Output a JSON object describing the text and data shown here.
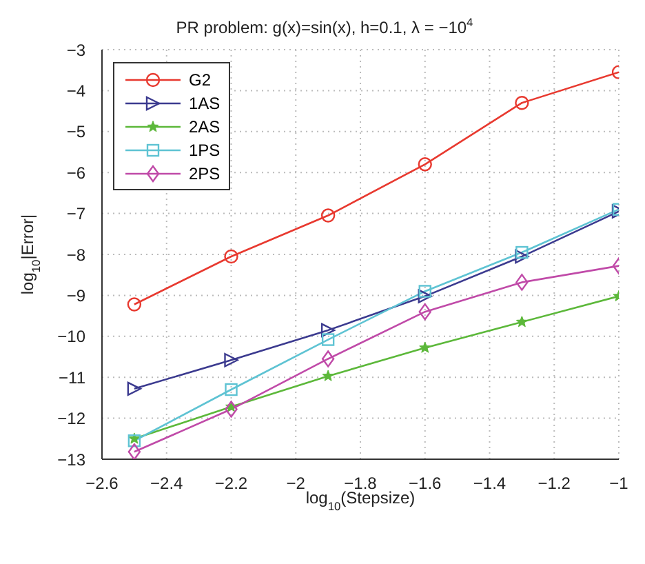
{
  "chart_data": {
    "type": "line",
    "title": "PR problem: g(x)=sin(x), h=0.1, λ = −10$^{4}$",
    "xlabel": "log$_{10}$(Stepsize)",
    "ylabel": "log$_{10}$|Error|",
    "x": [
      -2.5,
      -2.2,
      -1.9,
      -1.6,
      -1.3,
      -1.0
    ],
    "series": [
      {
        "name": "G2",
        "color": "#e8392f",
        "marker": "circle",
        "values": [
          -9.22,
          -8.05,
          -7.05,
          -5.8,
          -4.3,
          -3.55
        ]
      },
      {
        "name": "1AS",
        "color": "#3b3a8f",
        "marker": "triangle",
        "values": [
          -11.28,
          -10.58,
          -9.85,
          -9.02,
          -8.05,
          -6.95
        ]
      },
      {
        "name": "2AS",
        "color": "#5cb83a",
        "marker": "star",
        "values": [
          -12.5,
          -11.72,
          -10.97,
          -10.28,
          -9.65,
          -9.02
        ]
      },
      {
        "name": "1PS",
        "color": "#5ec3d3",
        "marker": "square",
        "values": [
          -12.55,
          -11.3,
          -10.08,
          -8.9,
          -7.95,
          -6.9
        ]
      },
      {
        "name": "2PS",
        "color": "#c04aa8",
        "marker": "diamond",
        "values": [
          -12.82,
          -11.78,
          -10.55,
          -9.4,
          -8.68,
          -8.28
        ]
      }
    ],
    "xlim": [
      -2.6,
      -1.0
    ],
    "xticks": [
      -2.6,
      -2.4,
      -2.2,
      -2,
      -1.8,
      -1.6,
      -1.4,
      -1.2,
      -1
    ],
    "ylim": [
      -13,
      -3
    ],
    "yticks": [
      -13,
      -12,
      -11,
      -10,
      -9,
      -8,
      -7,
      -6,
      -5,
      -4,
      -3
    ],
    "grid": true,
    "legend": "top left",
    "line_style": "solid"
  }
}
